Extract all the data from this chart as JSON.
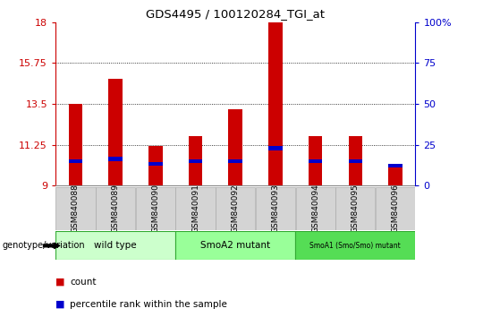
{
  "title": "GDS4495 / 100120284_TGI_at",
  "samples": [
    "GSM840088",
    "GSM840089",
    "GSM840090",
    "GSM840091",
    "GSM840092",
    "GSM840093",
    "GSM840094",
    "GSM840095",
    "GSM840096"
  ],
  "red_values": [
    13.5,
    14.9,
    11.2,
    11.7,
    13.2,
    18.0,
    11.7,
    11.7,
    10.15
  ],
  "blue_values": [
    10.35,
    10.45,
    10.2,
    10.35,
    10.35,
    11.05,
    10.35,
    10.35,
    10.1
  ],
  "ymin": 9,
  "ymax": 18,
  "yticks": [
    9,
    11.25,
    13.5,
    15.75,
    18
  ],
  "ytick_labels": [
    "9",
    "11.25",
    "13.5",
    "15.75",
    "18"
  ],
  "right_yticks": [
    0,
    25,
    50,
    75,
    100
  ],
  "right_ytick_labels": [
    "0",
    "25",
    "50",
    "75",
    "100%"
  ],
  "groups": [
    {
      "label": "wild type",
      "start": 0,
      "end": 3,
      "color": "#ccffcc"
    },
    {
      "label": "SmoA2 mutant",
      "start": 3,
      "end": 6,
      "color": "#99ff99"
    },
    {
      "label": "SmoA1 (Smo/Smo) mutant",
      "start": 6,
      "end": 9,
      "color": "#55dd55"
    }
  ],
  "bar_width": 0.35,
  "red_color": "#cc0000",
  "blue_color": "#0000cc",
  "grid_color": "#000000",
  "left_color": "#cc0000",
  "right_color": "#0000cc",
  "legend_red": "count",
  "legend_blue": "percentile rank within the sample",
  "group_label": "genotype/variation"
}
